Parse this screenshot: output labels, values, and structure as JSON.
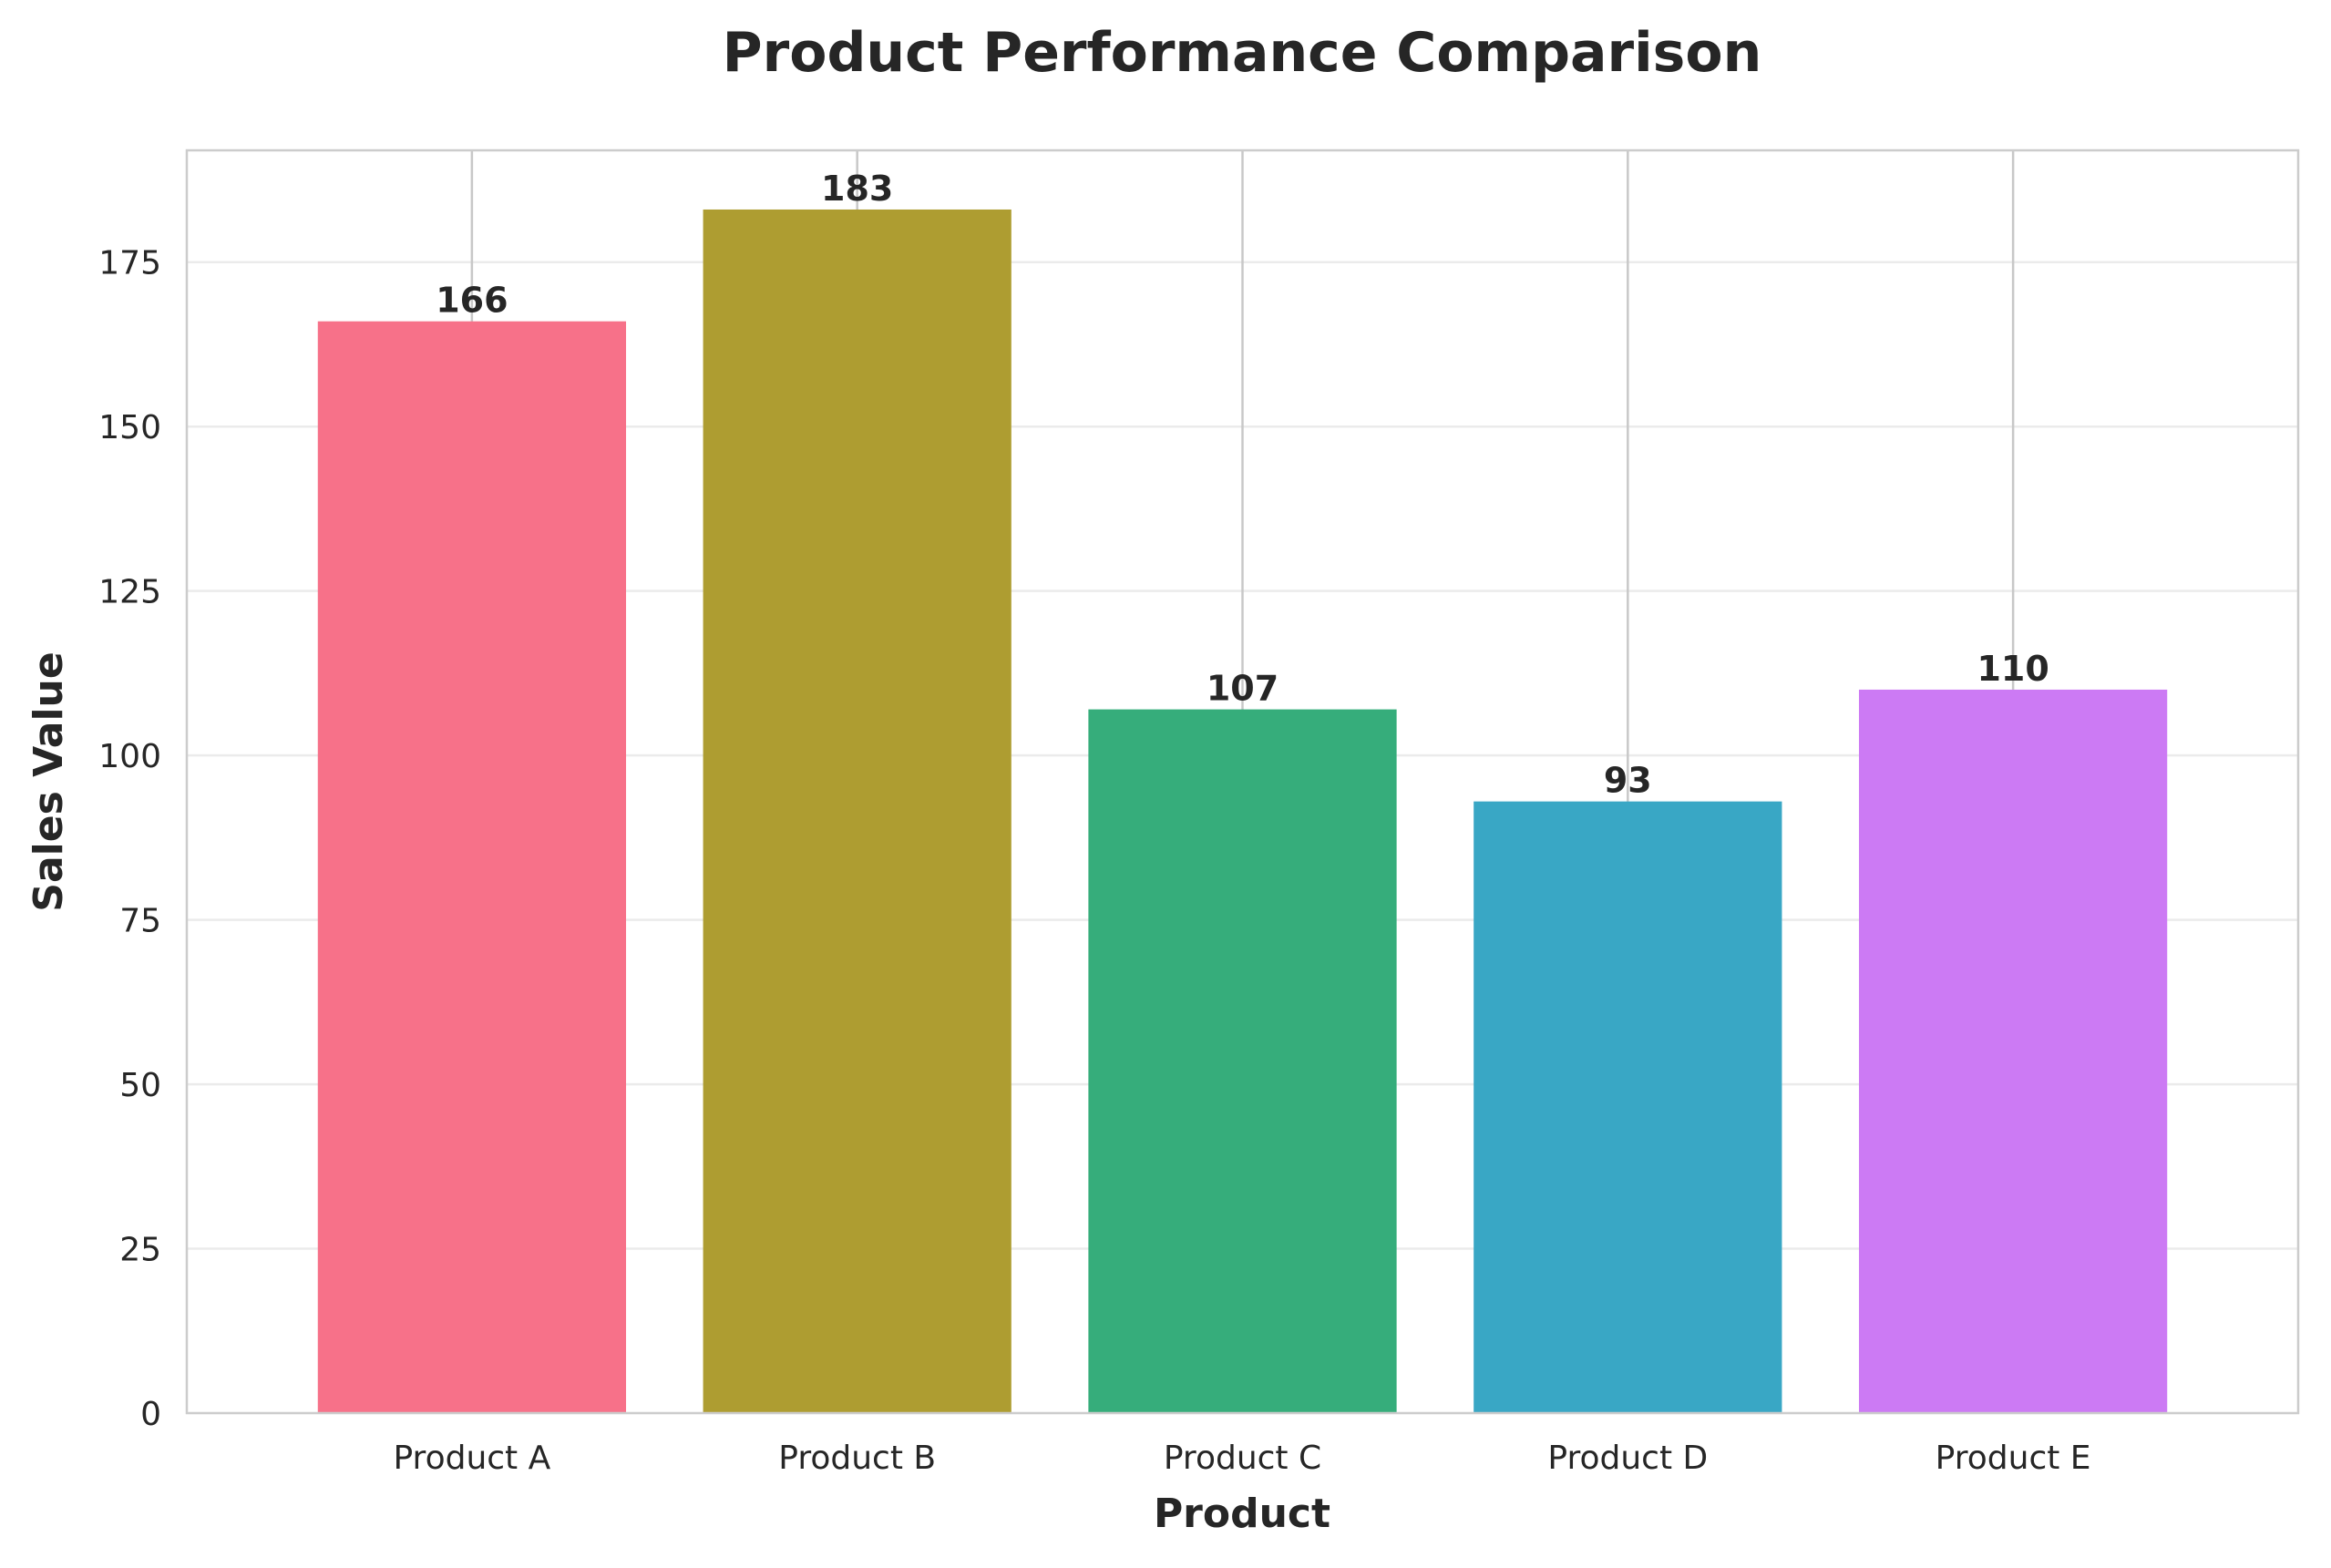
{
  "chart_data": {
    "type": "bar",
    "title": "Product Performance Comparison",
    "xlabel": "Product",
    "ylabel": "Sales Value",
    "categories": [
      "Product A",
      "Product B",
      "Product C",
      "Product D",
      "Product E"
    ],
    "values": [
      166,
      183,
      107,
      93,
      110
    ],
    "data_labels": [
      "166",
      "183",
      "107",
      "93",
      "110"
    ],
    "colors": [
      "#f77189",
      "#ae9d31",
      "#36ad7b",
      "#39a7c5",
      "#cc7af4"
    ],
    "ylim": [
      0,
      192
    ],
    "yticks": [
      0,
      25,
      50,
      75,
      100,
      125,
      150,
      175
    ],
    "ytick_labels": [
      "0",
      "25",
      "50",
      "75",
      "100",
      "125",
      "150",
      "175"
    ],
    "grid": "y-axis horizontal gridlines",
    "text_color": "#262626",
    "grid_color": "#ebebeb",
    "spine_color": "#cccccc",
    "category_line_color": "#c8c8c8"
  }
}
